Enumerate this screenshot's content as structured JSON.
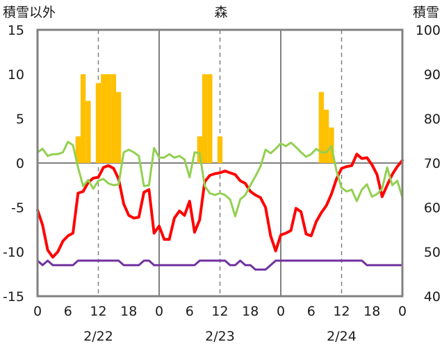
{
  "chart_data": {
    "type": "combo",
    "title": "森",
    "left_axis_label": "積雪以外",
    "right_axis_label": "積雪",
    "left_ylim": [
      -15,
      15
    ],
    "left_ticks": [
      15,
      10,
      5,
      0,
      -5,
      -10,
      -15
    ],
    "right_ylim": [
      40,
      100
    ],
    "right_ticks": [
      100,
      90,
      80,
      70,
      60,
      50,
      40
    ],
    "xlim": [
      0,
      72
    ],
    "x_ticks": [
      0,
      6,
      12,
      18,
      24,
      30,
      36,
      42,
      48,
      54,
      60,
      66,
      72
    ],
    "x_tick_labels": [
      "0",
      "6",
      "12",
      "18",
      "0",
      "6",
      "12",
      "18",
      "0",
      "6",
      "12",
      "18",
      "0"
    ],
    "date_labels": [
      {
        "label": "2/22",
        "x": 12
      },
      {
        "label": "2/23",
        "x": 36
      },
      {
        "label": "2/24",
        "x": 60
      }
    ],
    "day_separators": [
      24,
      48
    ],
    "dashed_gridlines_x": [
      12,
      36,
      60
    ],
    "colors": {
      "snow_bar": "#FFC000",
      "red_line": "#FF0000",
      "green_line": "#92D050",
      "purple_line": "#7030A0",
      "gridline": "#808080",
      "frame": "#808080"
    },
    "bars": {
      "axis": "left",
      "x": [
        8,
        9,
        10,
        12,
        13,
        14,
        15,
        16,
        32,
        33,
        34,
        36,
        56,
        57,
        58
      ],
      "values": [
        3,
        10,
        7,
        9,
        10,
        10,
        10,
        8,
        3,
        10,
        10,
        3,
        8,
        6,
        4
      ]
    },
    "series": [
      {
        "color_key": "red_line",
        "axis": "left",
        "x": [
          0,
          1,
          2,
          3,
          4,
          5,
          6,
          7,
          8,
          9,
          10,
          11,
          12,
          13,
          14,
          15,
          16,
          17,
          18,
          19,
          20,
          21,
          22,
          23,
          24,
          25,
          26,
          27,
          28,
          29,
          30,
          31,
          32,
          33,
          34,
          35,
          36,
          37,
          38,
          39,
          40,
          41,
          42,
          43,
          44,
          45,
          46,
          47,
          48,
          49,
          50,
          51,
          52,
          53,
          54,
          55,
          56,
          57,
          58,
          59,
          60,
          61,
          62,
          63,
          64,
          65,
          66,
          67,
          68,
          69,
          70,
          71,
          72
        ],
        "y": [
          -5.3,
          -7,
          -9.8,
          -10.6,
          -10,
          -8.8,
          -8.2,
          -7.9,
          -3.4,
          -3.2,
          -2.2,
          -1.7,
          -1.6,
          -0.5,
          -0.3,
          -0.6,
          -1.8,
          -4.6,
          -5.9,
          -6.2,
          -6.1,
          -3.3,
          -3,
          -7.9,
          -7.1,
          -8.6,
          -8.6,
          -6.2,
          -5.4,
          -5.9,
          -4.3,
          -7.8,
          -6.4,
          -2.1,
          -1.4,
          -1.2,
          -1.1,
          -0.9,
          -1.1,
          -1.3,
          -2,
          -2.3,
          -3.2,
          -3.6,
          -3.9,
          -5,
          -8.2,
          -9.9,
          -8.1,
          -7.9,
          -7.6,
          -5.1,
          -5.5,
          -8,
          -8.2,
          -6.6,
          -5.6,
          -4.8,
          -3.5,
          -1.8,
          -0.6,
          -0.4,
          -0.3,
          1,
          0.5,
          0.6,
          -0.2,
          -1.3,
          -3.8,
          -2.5,
          -1.3,
          -0.4,
          0.3
        ]
      },
      {
        "color_key": "green_line",
        "axis": "left",
        "x": [
          0,
          1,
          2,
          3,
          4,
          5,
          6,
          7,
          8,
          9,
          10,
          11,
          12,
          13,
          14,
          15,
          16,
          17,
          18,
          19,
          20,
          21,
          22,
          23,
          24,
          25,
          26,
          27,
          28,
          29,
          30,
          31,
          32,
          33,
          34,
          35,
          36,
          37,
          38,
          39,
          40,
          41,
          42,
          43,
          44,
          45,
          46,
          47,
          48,
          49,
          50,
          51,
          52,
          53,
          54,
          55,
          56,
          57,
          58,
          59,
          60,
          61,
          62,
          63,
          64,
          65,
          66,
          67,
          68,
          69,
          70,
          71,
          72
        ],
        "y": [
          1.2,
          1.6,
          0.8,
          1,
          1,
          1.2,
          2.4,
          2,
          -0.5,
          -2.6,
          -1.9,
          -2.9,
          -2,
          -1.8,
          -2.3,
          -2.5,
          -2.4,
          1.2,
          1.5,
          1.2,
          0.8,
          -2.6,
          -2.5,
          1.7,
          0.6,
          0.6,
          1,
          0.6,
          0.8,
          0.4,
          -1.6,
          1.2,
          1.1,
          -2.6,
          -3.4,
          -3.6,
          -3.4,
          -3.6,
          -4.1,
          -6,
          -4.1,
          -3.6,
          -2.5,
          -1.5,
          -0.4,
          1.5,
          1.1,
          1.6,
          2.2,
          1.9,
          2.3,
          1.8,
          1.2,
          0.7,
          1,
          1.6,
          1.2,
          1.2,
          1.9,
          -0.9,
          -2.8,
          -3.2,
          -3,
          -4.3,
          -3,
          -2.4,
          -3.8,
          -3.5,
          -2.9,
          -0.5,
          -2.5,
          -2,
          -3.9
        ]
      },
      {
        "color_key": "purple_line",
        "axis": "right",
        "x": [
          0,
          1,
          2,
          3,
          4,
          5,
          6,
          7,
          8,
          9,
          10,
          11,
          12,
          13,
          14,
          15,
          16,
          17,
          18,
          19,
          20,
          21,
          22,
          23,
          24,
          25,
          26,
          27,
          28,
          29,
          30,
          31,
          32,
          33,
          34,
          35,
          36,
          37,
          38,
          39,
          40,
          41,
          42,
          43,
          44,
          45,
          46,
          47,
          48,
          49,
          50,
          51,
          52,
          53,
          54,
          55,
          56,
          57,
          58,
          59,
          60,
          61,
          62,
          63,
          64,
          65,
          66,
          67,
          68,
          69,
          70,
          71,
          72
        ],
        "y": [
          48,
          47,
          48,
          47,
          47,
          47,
          47,
          47,
          48,
          48,
          48,
          48,
          48,
          48,
          48,
          48,
          48,
          47,
          47,
          47,
          47,
          48,
          48,
          47,
          47,
          47,
          47,
          47,
          47,
          47,
          47,
          47,
          48,
          48,
          48,
          48,
          48,
          48,
          47,
          47,
          48,
          47,
          47,
          46,
          46,
          46,
          47,
          48,
          48,
          48,
          48,
          48,
          48,
          48,
          48,
          48,
          48,
          48,
          48,
          48,
          48,
          48,
          48,
          48,
          48,
          47,
          47,
          47,
          47,
          47,
          47,
          47,
          47
        ]
      }
    ]
  }
}
